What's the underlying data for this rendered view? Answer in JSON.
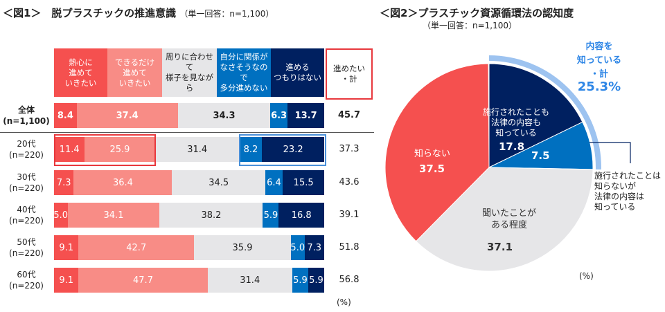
{
  "chart_data": [
    {
      "type": "bar",
      "stacked": true,
      "orientation": "horizontal",
      "title": "＜図1＞　脱プラスチックの推進意識",
      "subtitle": "（単一回答：n=1,100）",
      "legend": [
        "熱心に\n進めて\nいきたい",
        "できるだけ\n進めて\nいきたい",
        "周りに合わせて\n様子を見ながら",
        "自分に関係が\nなさそうなので\n多分進めない",
        "進める\nつもりはない"
      ],
      "total_header": "進めたい\n・計",
      "categories": [
        "全体\n(n=1,100)",
        "20代\n(n=220)",
        "30代\n(n=220)",
        "40代\n(n=220)",
        "50代\n(n=220)",
        "60代\n(n=220)"
      ],
      "values": [
        [
          8.4,
          37.4,
          34.3,
          6.3,
          13.7
        ],
        [
          11.4,
          25.9,
          31.4,
          8.2,
          23.2
        ],
        [
          7.3,
          36.4,
          34.5,
          6.4,
          15.5
        ],
        [
          5.0,
          34.1,
          38.2,
          5.9,
          16.8
        ],
        [
          9.1,
          42.7,
          35.9,
          5.0,
          7.3
        ],
        [
          9.1,
          47.7,
          31.4,
          5.9,
          5.9
        ]
      ],
      "totals": [
        45.7,
        37.3,
        43.6,
        39.1,
        51.8,
        56.8
      ],
      "unit": "(%)",
      "colors": [
        "#f5504f",
        "#f88c86",
        "#e6e6e8",
        "#0070c0",
        "#002060"
      ],
      "xlim": [
        0,
        100
      ]
    },
    {
      "type": "pie",
      "title": "＜図2＞プラスチック資源循環法の認知度",
      "subtitle": "（単一回答：n=1,100）",
      "slices": [
        {
          "label": "施行されたことも\n法律の内容も\n知っている",
          "value": 17.8,
          "color": "#002060"
        },
        {
          "label": "施行されたことは\n知らないが\n法律の内容は\n知っている",
          "value": 7.5,
          "color": "#0070c0"
        },
        {
          "label": "聞いたことが\nある程度",
          "value": 37.1,
          "color": "#e6e6e8"
        },
        {
          "label": "知らない",
          "value": 37.5,
          "color": "#f5504f"
        }
      ],
      "highlight": {
        "label": "内容を\n知っている\n・計",
        "value": "25.3%",
        "color": "#9dc3f0",
        "text_color": "#2e86e6"
      },
      "unit": "(%)"
    }
  ]
}
